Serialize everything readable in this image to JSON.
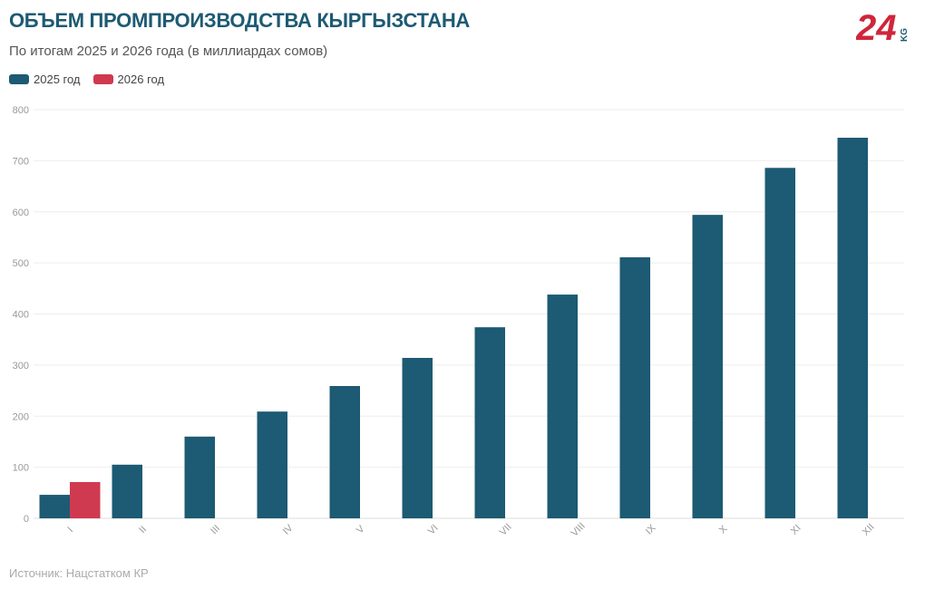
{
  "header": {
    "title": "ОБЪЕМ ПРОМПРОИЗВОДСТВА КЫРГЫЗСТАНА",
    "subtitle": "По итогам 2025 и 2026 года (в миллиардах сомов)"
  },
  "logo": {
    "text": "24",
    "suffix": "KG",
    "color": "#d0253a"
  },
  "footer": {
    "source": "Источник: Нацстатком КР"
  },
  "chart_data": {
    "type": "bar",
    "categories": [
      "I",
      "II",
      "III",
      "IV",
      "V",
      "VI",
      "VII",
      "VIII",
      "IX",
      "X",
      "XI",
      "XII"
    ],
    "series": [
      {
        "name": "2025 год",
        "color": "#1d5a73",
        "values": [
          46,
          105,
          160,
          209,
          259,
          314,
          374,
          438,
          511,
          594,
          686,
          745
        ]
      },
      {
        "name": "2026 год",
        "color": "#cf3a50",
        "values": [
          71,
          null,
          null,
          null,
          null,
          null,
          null,
          null,
          null,
          null,
          null,
          null
        ]
      }
    ],
    "ylim": [
      0,
      800
    ],
    "yticks": [
      0,
      100,
      200,
      300,
      400,
      500,
      600,
      700,
      800
    ],
    "grid": true,
    "legend": "top-left"
  }
}
